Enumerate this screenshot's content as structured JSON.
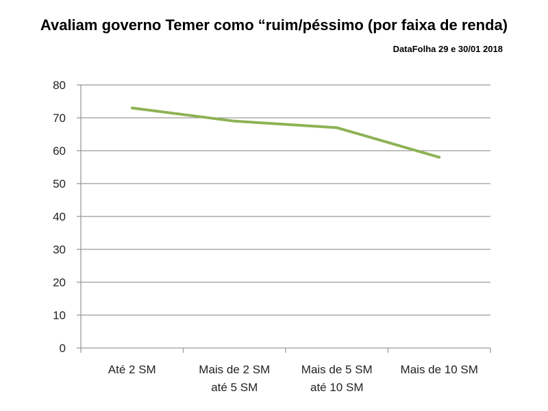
{
  "header": {
    "title": "Avaliam governo Temer como “ruim/péssimo (por faixa de renda)",
    "subtitle": "DataFolha 29 e 30/01 2018"
  },
  "chart_data": {
    "type": "line",
    "categories": [
      [
        "Até 2 SM"
      ],
      [
        "Mais de 2 SM",
        "até 5 SM"
      ],
      [
        "Mais de 5 SM",
        "até 10 SM"
      ],
      [
        "Mais de 10 SM"
      ]
    ],
    "series": [
      {
        "values": [
          73,
          69,
          67,
          58
        ],
        "color": "#8db255"
      }
    ],
    "ylim": [
      0,
      80
    ],
    "yticks": [
      0,
      10,
      20,
      30,
      40,
      50,
      60,
      70,
      80
    ],
    "grid": true,
    "legend": "none"
  }
}
